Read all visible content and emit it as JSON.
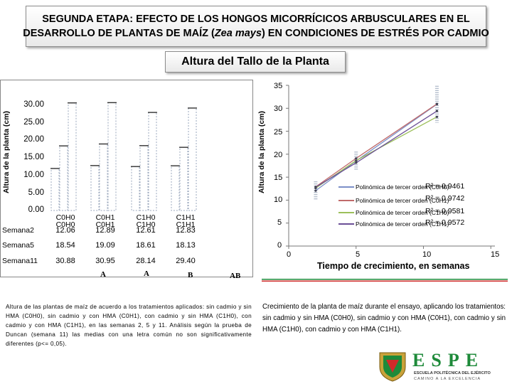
{
  "header": {
    "line1": "SEGUNDA ETAPA: EFECTO DE LOS HONGOS MICORRÍCICOS ARBUSCULARES EN EL",
    "line2_a": "DESARROLLO DE PLANTAS DE MAÍZ (",
    "line2_italic": "Zea mays",
    "line2_b": ") EN CONDICIONES DE ESTRÉS POR CADMIO"
  },
  "subtitle": "Altura del Tallo de la Planta",
  "left_chart": {
    "ylabel": "Altura de la planta (cm)",
    "yticks": [
      "30.00",
      "25.00",
      "20.00",
      "15.00",
      "10.00",
      "5.00",
      "0.00"
    ],
    "conditions": [
      "C0H0",
      "C0H1",
      "C1H0",
      "C1H1"
    ],
    "conditions_overlap": [
      "C0H0",
      "C0H1",
      "C1H0",
      "C1H1"
    ],
    "rows": [
      {
        "label": "Semana2",
        "values": [
          "12.06",
          "12.89",
          "12.61",
          "12.83"
        ]
      },
      {
        "label": "Semana5",
        "values": [
          "18.54",
          "19.09",
          "18.61",
          "18.13"
        ]
      },
      {
        "label": "Semana11",
        "values": [
          "30.88",
          "30.95",
          "28.14",
          "29.40"
        ]
      }
    ],
    "letters": [
      "A",
      "A",
      "B",
      "AB"
    ]
  },
  "right_chart": {
    "ylabel": "Altura de la planta (cm)",
    "xlabel": "Tiempo de crecimiento, en semanas",
    "yticks": [
      "35",
      "30",
      "25",
      "20",
      "15",
      "10",
      "5",
      "0"
    ],
    "xticks": [
      "0",
      "5",
      "10",
      "15"
    ],
    "legend": [
      {
        "label": "Polinómica de tercer orden (C0H0)",
        "color": "#7b8fc8"
      },
      {
        "label": "Polinómica de tercer orden (C0H1)",
        "color": "#c06a6a"
      },
      {
        "label": "Polinómica de tercer orden (C1H0)",
        "color": "#9cbf5a"
      },
      {
        "label": "Polinómica de tercer orden (C1H1)",
        "color": "#6a4f96"
      }
    ],
    "r2_labels": [
      "R² = 0.9461",
      "R² = 0.9742",
      "R² = 0.9581",
      "R² = 0.9572"
    ]
  },
  "chart_data": {
    "type": "line",
    "title": "",
    "xlabel": "Tiempo de crecimiento, en semanas",
    "ylabel": "Altura de la planta (cm)",
    "xlim": [
      0,
      15
    ],
    "ylim": [
      0,
      35
    ],
    "x": [
      2,
      5,
      11
    ],
    "series": [
      {
        "name": "Polinómica de tercer orden (C0H0)",
        "values": [
          12.06,
          18.54,
          30.88
        ]
      },
      {
        "name": "Polinómica de tercer orden (C0H1)",
        "values": [
          12.89,
          19.09,
          30.95
        ]
      },
      {
        "name": "Polinómica de tercer orden (C1H0)",
        "values": [
          12.61,
          18.61,
          28.14
        ]
      },
      {
        "name": "Polinómica de tercer orden (C1H1)",
        "values": [
          12.83,
          18.13,
          29.4
        ]
      }
    ]
  },
  "captions": {
    "left": "Altura de las plantas de maíz de acuerdo a los tratamientos aplicados: sin cadmio y sin HMA (C0H0), sin cadmio y con HMA (C0H1), con cadmio y sin HMA (C1H0), con cadmio y con HMA (C1H1), en las semanas 2, 5 y 11. Análisis según la prueba de Duncan (semana 11) las medias con una letra común no son significativamente diferentes (p<= 0,05).",
    "right": "Crecimiento de la planta de maíz durante el ensayo, aplicando los tratamientos: sin cadmio y sin HMA (C0H0), sin cadmio y con HMA (C0H1), con cadmio y sin HMA (C1H0), con cadmio y con HMA (C1H1)."
  },
  "logo": {
    "letters": [
      "E",
      "S",
      "P",
      "E"
    ],
    "line1": "ESCUELA POLITÉCNICA DEL EJÉRCITO",
    "line2": "CAMINO A LA EXCELENCIA",
    "colors": {
      "green": "#1e8a3a",
      "red": "#d02a2a",
      "gold": "#c9a23a"
    }
  }
}
